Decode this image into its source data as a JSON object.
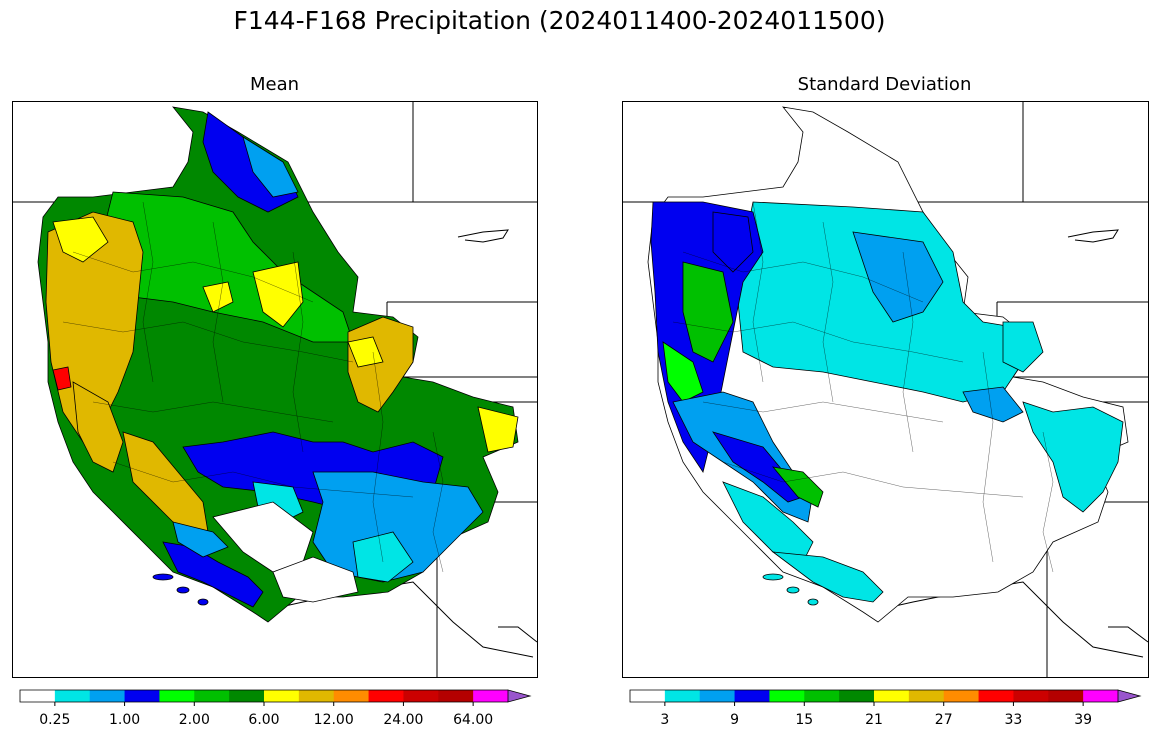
{
  "figure": {
    "title": "F144-F168 Precipitation (2024011400-2024011500)"
  },
  "panels": [
    {
      "id": "mean",
      "title": "Mean"
    },
    {
      "id": "stddev",
      "title": "Standard Deviation"
    }
  ],
  "colorbars": {
    "mean": {
      "colors": [
        "#ffffff",
        "#00e5e5",
        "#00a0f0",
        "#0000f0",
        "#00ff00",
        "#00c000",
        "#008800",
        "#ffff00",
        "#e0b800",
        "#ff8c00",
        "#ff0000",
        "#cc0000",
        "#b40000",
        "#ff00ff",
        "#9955cc"
      ],
      "tick_labels": [
        "0.25",
        "1.00",
        "2.00",
        "6.00",
        "12.00",
        "24.00",
        "64.00"
      ],
      "extend": "max"
    },
    "stddev": {
      "colors": [
        "#ffffff",
        "#00e5e5",
        "#00a0f0",
        "#0000f0",
        "#00ff00",
        "#00c000",
        "#008800",
        "#ffff00",
        "#e0b800",
        "#ff8c00",
        "#ff0000",
        "#cc0000",
        "#b40000",
        "#ff00ff",
        "#9955cc"
      ],
      "tick_labels": [
        "3",
        "9",
        "15",
        "21",
        "27",
        "33",
        "39"
      ],
      "extend": "max"
    }
  }
}
